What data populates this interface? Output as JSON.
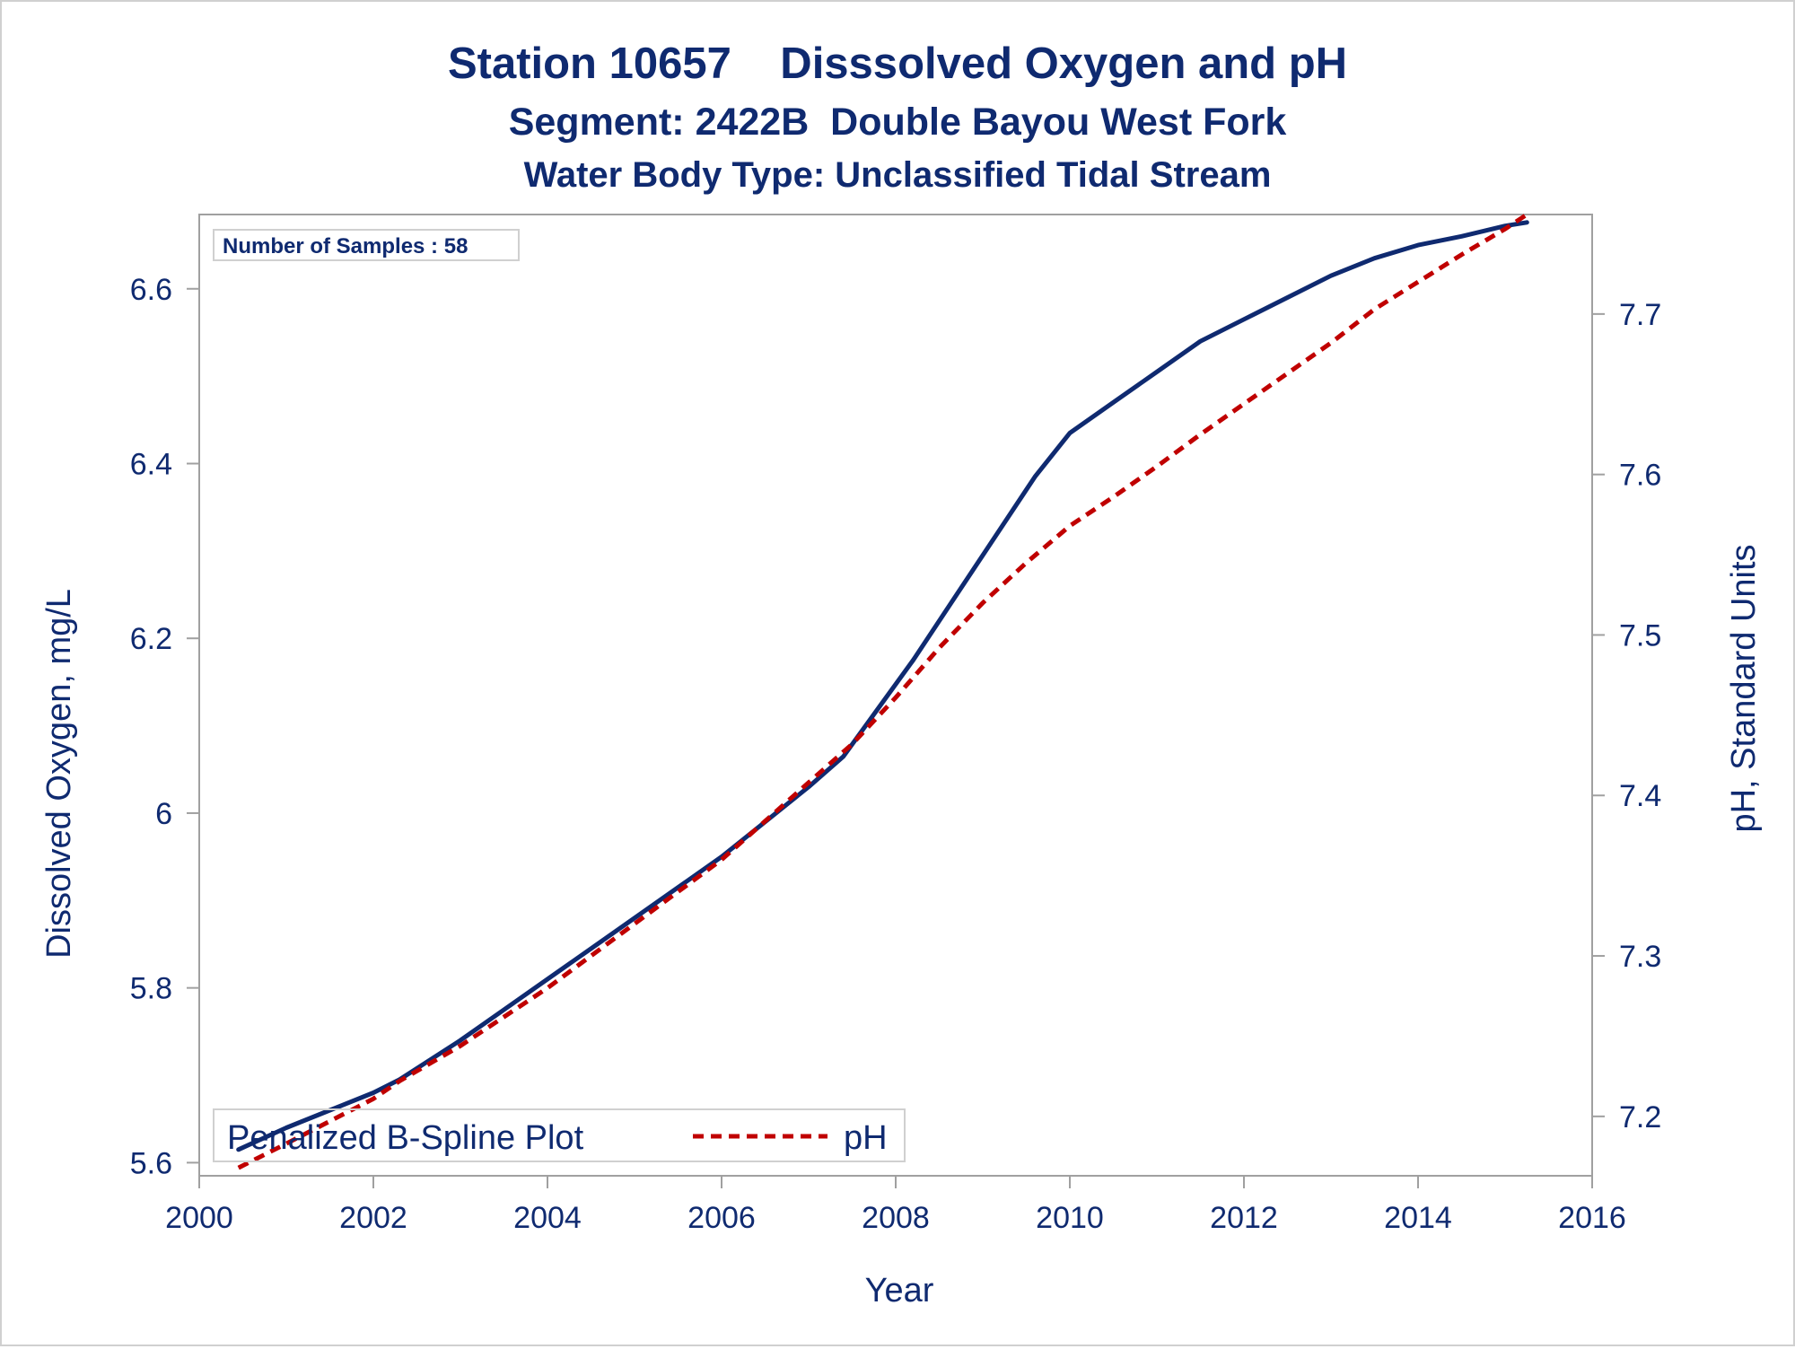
{
  "colors": {
    "text": "#0f2a70",
    "do_line": "#0f2a70",
    "ph_line": "#c00000",
    "frame": "#a0a0a0",
    "border": "#d0d0d0"
  },
  "chart_data": {
    "type": "line",
    "title": "Station 10657    Disssolved Oxygen and pH",
    "subtitle": "Segment: 2422B  Double Bayou West Fork",
    "subtitle2": "Water Body Type: Unclassified Tidal Stream",
    "xlabel": "Year",
    "ylabel": "Dissolved Oxygen, mg/L",
    "y2label": "pH, Standard Units",
    "xlim": [
      2000,
      2016
    ],
    "ylim": [
      5.585,
      6.685
    ],
    "y2lim": [
      7.163,
      7.762
    ],
    "xticks": [
      2000,
      2002,
      2004,
      2006,
      2008,
      2010,
      2012,
      2014,
      2016
    ],
    "xtick_labels": [
      "2000",
      "2002",
      "2004",
      "2006",
      "2008",
      "2010",
      "2012",
      "2014",
      "2016"
    ],
    "yticks": [
      5.6,
      5.8,
      6,
      6.2,
      6.4,
      6.6
    ],
    "ytick_labels": [
      "5.6",
      "5.8",
      "6",
      "6.2",
      "6.4",
      "6.6"
    ],
    "y2ticks": [
      7.2,
      7.3,
      7.4,
      7.5,
      7.6,
      7.7
    ],
    "y2tick_labels": [
      "7.2",
      "7.3",
      "7.4",
      "7.5",
      "7.6",
      "7.7"
    ],
    "inset_text": "Number of Samples : 58",
    "legend": {
      "position": "bottom-left",
      "title": "Penalized B-Spline Plot",
      "entries": [
        "pH"
      ]
    },
    "series": [
      {
        "axis": "left",
        "style": "solid",
        "x": [
          2000.45,
          2001.0,
          2001.5,
          2002.0,
          2002.3,
          2003.0,
          2003.5,
          2004.0,
          2004.5,
          2005.0,
          2005.5,
          2006.0,
          2006.5,
          2007.0,
          2007.4,
          2007.8,
          2008.2,
          2008.7,
          2009.2,
          2009.6,
          2010.0,
          2010.5,
          2011.0,
          2011.5,
          2012.0,
          2012.5,
          2013.0,
          2013.5,
          2014.0,
          2014.5,
          2015.0,
          2015.25
        ],
        "y": [
          5.615,
          5.64,
          5.66,
          5.68,
          5.695,
          5.74,
          5.775,
          5.81,
          5.845,
          5.88,
          5.915,
          5.95,
          5.99,
          6.03,
          6.065,
          6.12,
          6.175,
          6.25,
          6.325,
          6.385,
          6.435,
          6.47,
          6.505,
          6.54,
          6.565,
          6.59,
          6.615,
          6.635,
          6.65,
          6.66,
          6.672,
          6.676
        ]
      },
      {
        "name": "pH",
        "axis": "right",
        "style": "dashed",
        "x": [
          2000.45,
          2001.0,
          2001.5,
          2002.0,
          2002.3,
          2003.0,
          2003.5,
          2004.0,
          2004.5,
          2005.0,
          2005.5,
          2006.0,
          2006.5,
          2007.0,
          2007.5,
          2008.0,
          2008.5,
          2009.0,
          2009.5,
          2010.0,
          2010.5,
          2011.0,
          2011.5,
          2012.0,
          2012.5,
          2013.0,
          2013.5,
          2014.0,
          2014.5,
          2015.0,
          2015.25
        ],
        "y": [
          7.168,
          7.183,
          7.197,
          7.211,
          7.222,
          7.244,
          7.262,
          7.28,
          7.3,
          7.32,
          7.34,
          7.36,
          7.384,
          7.408,
          7.432,
          7.461,
          7.492,
          7.52,
          7.545,
          7.568,
          7.586,
          7.605,
          7.625,
          7.644,
          7.663,
          7.682,
          7.703,
          7.72,
          7.737,
          7.753,
          7.762
        ]
      }
    ]
  }
}
